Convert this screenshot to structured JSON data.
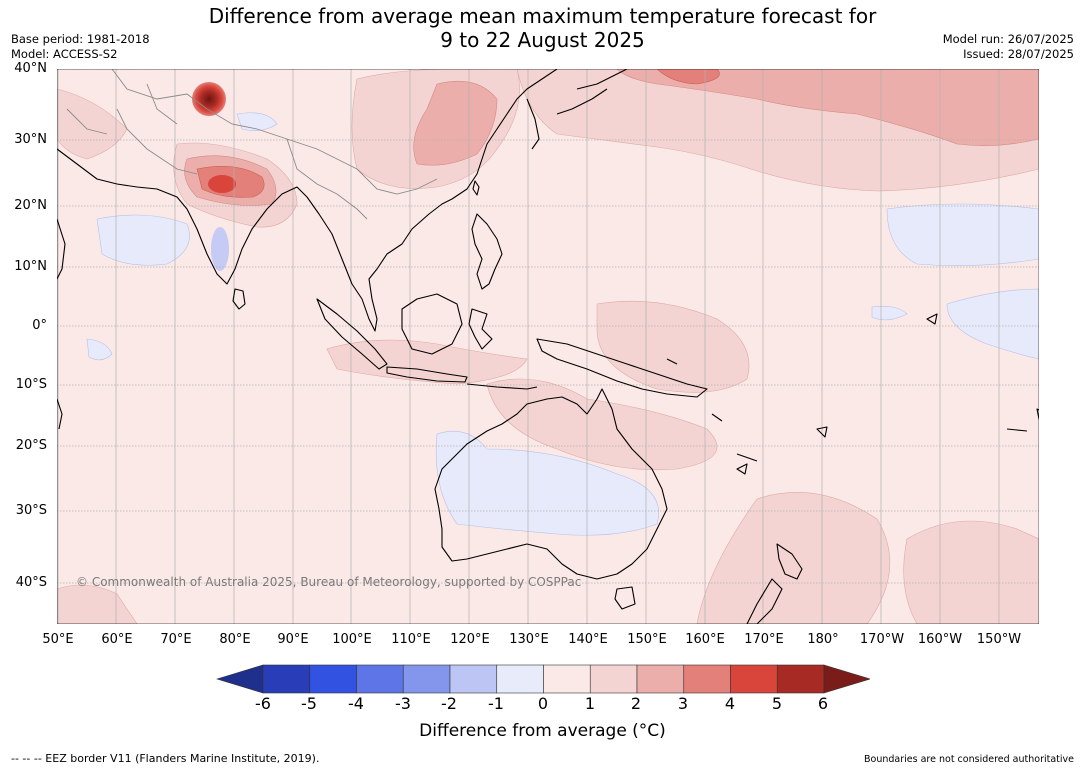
{
  "title": {
    "line1": "Difference from average mean maximum temperature forecast for",
    "line2": "9 to 22 August 2025"
  },
  "meta": {
    "base_period": "Base period: 1981-2018",
    "model": "Model: ACCESS-S2",
    "model_run": "Model run: 26/07/2025",
    "issued": "Issued: 28/07/2025"
  },
  "map": {
    "copyright": "© Commonwealth of Australia 2025, Bureau of Meteorology, supported by COSPPac",
    "lon_labels": [
      "50°E",
      "60°E",
      "70°E",
      "80°E",
      "90°E",
      "100°E",
      "110°E",
      "120°E",
      "130°E",
      "140°E",
      "150°E",
      "160°E",
      "170°E",
      "180°",
      "170°W",
      "160°W",
      "150°W"
    ],
    "lat_labels": [
      "40°N",
      "30°N",
      "20°N",
      "10°N",
      "0°",
      "10°S",
      "20°S",
      "30°S",
      "40°S"
    ],
    "colors": {
      "sea_base": "#fbe9e7",
      "neutral_cool": "#e6eafa",
      "light_cool": "#bfc8f5",
      "warm_1_2": "#f4d4d2",
      "warm_2_3": "#ecaeab",
      "warm_3_4": "#e3807a",
      "warm_4_5": "#d9453b",
      "warm_5_6": "#a82a24",
      "coast": "#000000",
      "borders": "#8a8a8a",
      "gridlines": "#b0b0b0"
    }
  },
  "colorbar": {
    "label": "Difference from average (°C)",
    "ticks": [
      "-6",
      "-5",
      "-4",
      "-3",
      "-2",
      "-1",
      "0",
      "1",
      "2",
      "3",
      "4",
      "5",
      "6"
    ],
    "colors": [
      "#1f2f8c",
      "#2a3db8",
      "#3252e2",
      "#5d75e6",
      "#8496ec",
      "#bcc5f4",
      "#e8ebfa",
      "#fbe9e7",
      "#f4d4d2",
      "#ecaeab",
      "#e3807a",
      "#d9453b",
      "#a82a24",
      "#7a1c18"
    ]
  },
  "footer": {
    "eez": "-- -- -- EEZ border V11 (Flanders Marine Institute, 2019).",
    "boundaries": "Boundaries are not considered authoritative"
  }
}
